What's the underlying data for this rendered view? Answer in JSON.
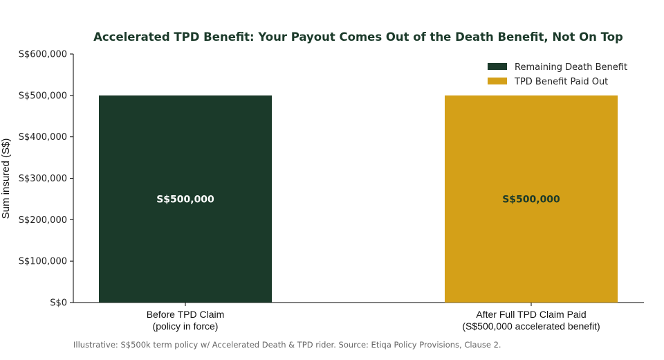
{
  "colors": {
    "dark_green": "#1b3a2a",
    "gold": "#d4a018"
  },
  "chart_data": {
    "type": "bar",
    "title": "Accelerated TPD Benefit: Your Payout Comes Out of the Death Benefit, Not On Top",
    "xlabel": "",
    "ylabel": "Sum insured (S$)",
    "ylim": [
      0,
      600000
    ],
    "yticks": [
      0,
      100000,
      200000,
      300000,
      400000,
      500000,
      600000
    ],
    "ytick_labels": [
      "S$0",
      "S$100,000",
      "S$200,000",
      "S$300,000",
      "S$400,000",
      "S$500,000",
      "S$600,000"
    ],
    "categories": [
      [
        "Before TPD Claim",
        "(policy in force)"
      ],
      [
        "After Full TPD Claim Paid",
        "(S$500,000 accelerated benefit)"
      ]
    ],
    "series": [
      {
        "name": "Remaining Death Benefit",
        "color": "#1b3a2a",
        "values": [
          500000,
          0
        ]
      },
      {
        "name": "TPD Benefit Paid Out",
        "color": "#d4a018",
        "values": [
          0,
          500000
        ]
      }
    ],
    "data_labels": [
      "S$500,000",
      "S$500,000"
    ],
    "data_label_colors": [
      "#ffffff",
      "#1b3a2a"
    ],
    "legend_position": "top-right",
    "grid": false
  },
  "footnote": "Illustrative: S$500k term policy w/ Accelerated Death & TPD rider. Source: Etiqa Policy Provisions, Clause 2."
}
